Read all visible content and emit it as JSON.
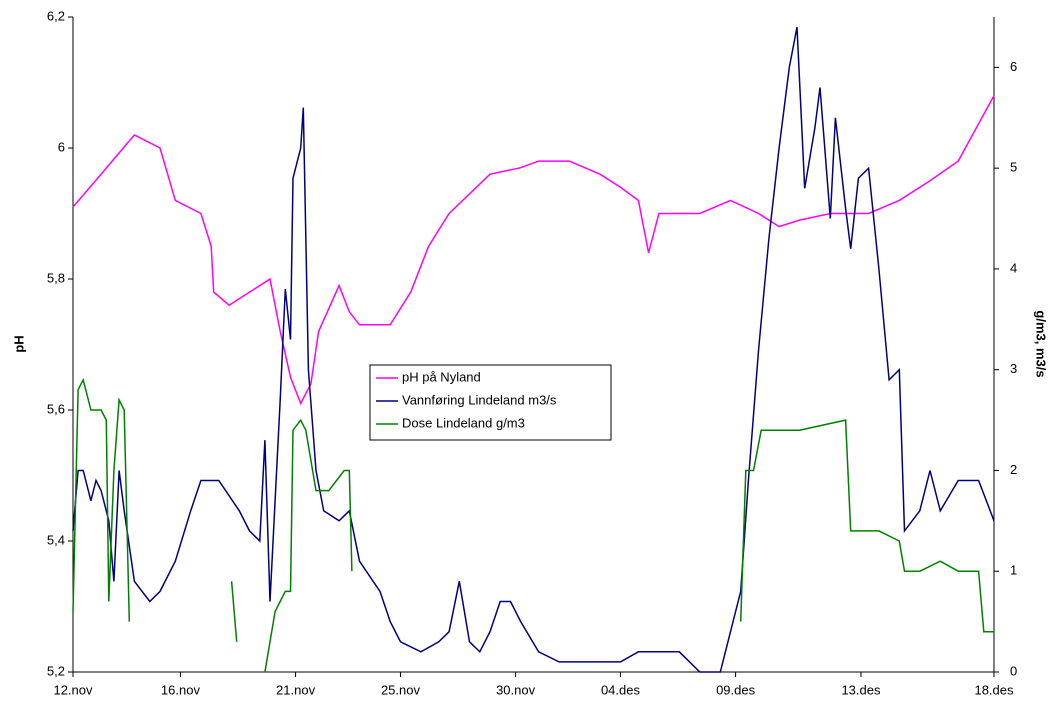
{
  "chart_data": {
    "type": "line",
    "y_label": "pH",
    "y2_label": "g/m3, m3/s",
    "xlim": [
      0,
      36
    ],
    "xticks": [
      {
        "value": 0,
        "label": "12.nov"
      },
      {
        "value": 4.2,
        "label": "16.nov"
      },
      {
        "value": 8.7,
        "label": "21.nov"
      },
      {
        "value": 12.8,
        "label": "25.nov"
      },
      {
        "value": 17.3,
        "label": "30.nov"
      },
      {
        "value": 21.4,
        "label": "04.des"
      },
      {
        "value": 25.9,
        "label": "09.des"
      },
      {
        "value": 30.8,
        "label": "13.des"
      },
      {
        "value": 36,
        "label": "18.des"
      }
    ],
    "ylim": [
      5.2,
      6.2
    ],
    "yticks": [
      {
        "value": 5.2,
        "label": "5,2"
      },
      {
        "value": 5.4,
        "label": "5,4"
      },
      {
        "value": 5.6,
        "label": "5,6"
      },
      {
        "value": 5.8,
        "label": "5,8"
      },
      6,
      {
        "value": 6.2,
        "label": "6,2"
      }
    ],
    "y2lim": [
      0,
      6.5
    ],
    "y2ticks": [
      0,
      1,
      2,
      3,
      4,
      5,
      6
    ],
    "series": [
      {
        "name": "pH på Nyland",
        "color": "#ff00ff",
        "x": [
          0,
          1.1,
          2.4,
          3.4,
          4.0,
          5.0,
          5.4,
          5.5,
          6.1,
          7.3,
          7.7,
          8.1,
          8.5,
          8.9,
          9.3,
          9.6,
          10.4,
          10.8,
          11.2,
          12.4,
          13.2,
          13.9,
          14.7,
          15.5,
          16.3,
          17.5,
          18.2,
          19.4,
          20.6,
          21.4,
          22.1,
          22.5,
          22.9,
          24.5,
          25.7,
          26.8,
          27.6,
          28.4,
          29.6,
          31.1,
          32.3,
          33.5,
          34.6,
          36.0
        ],
        "values": [
          5.91,
          5.96,
          6.02,
          6.0,
          5.92,
          5.9,
          5.85,
          5.78,
          5.76,
          5.79,
          5.8,
          5.72,
          5.65,
          5.61,
          5.64,
          5.72,
          5.79,
          5.75,
          5.73,
          5.73,
          5.78,
          5.85,
          5.9,
          5.93,
          5.96,
          5.97,
          5.98,
          5.98,
          5.96,
          5.94,
          5.92,
          5.84,
          5.9,
          5.9,
          5.92,
          5.9,
          5.88,
          5.89,
          5.9,
          5.9,
          5.92,
          5.95,
          5.98,
          6.08
        ]
      },
      {
        "name": "Vannføring Lindeland m3/s",
        "color": "#000080",
        "axis": "y2",
        "x": [
          0,
          0.2,
          0.4,
          0.7,
          0.9,
          1.1,
          1.4,
          1.6,
          1.8,
          2.0,
          2.4,
          3.0,
          3.4,
          4.0,
          4.6,
          5.0,
          5.7,
          6.5,
          6.9,
          7.3,
          7.5,
          7.7,
          8.1,
          8.3,
          8.5,
          8.6,
          8.9,
          9.0,
          9.2,
          9.5,
          9.8,
          10.4,
          10.8,
          11.2,
          12.0,
          12.4,
          12.8,
          13.6,
          14.3,
          14.7,
          15.1,
          15.5,
          15.9,
          16.3,
          16.7,
          17.1,
          17.5,
          18.2,
          19.0,
          20.6,
          21.4,
          22.1,
          22.9,
          23.7,
          24.5,
          25.3,
          26.1,
          26.4,
          26.8,
          27.2,
          27.6,
          28.0,
          28.3,
          28.6,
          29.0,
          29.2,
          29.6,
          29.8,
          30.2,
          30.4,
          30.7,
          31.1,
          31.5,
          31.9,
          32.3,
          32.5,
          33.1,
          33.5,
          33.9,
          34.6,
          35.4,
          36.0
        ],
        "values": [
          1.4,
          2.0,
          2.0,
          1.7,
          1.9,
          1.8,
          1.5,
          0.9,
          2.0,
          1.6,
          0.9,
          0.7,
          0.8,
          1.1,
          1.6,
          1.9,
          1.9,
          1.6,
          1.4,
          1.3,
          2.3,
          0.7,
          2.7,
          3.8,
          3.3,
          4.9,
          5.2,
          5.6,
          3.0,
          2.0,
          1.6,
          1.5,
          1.6,
          1.1,
          0.8,
          0.5,
          0.3,
          0.2,
          0.3,
          0.4,
          0.9,
          0.3,
          0.2,
          0.4,
          0.7,
          0.7,
          0.5,
          0.2,
          0.1,
          0.1,
          0.1,
          0.2,
          0.2,
          0.2,
          0.0,
          0.0,
          0.8,
          1.9,
          3.2,
          4.3,
          5.2,
          6.0,
          6.4,
          4.8,
          5.4,
          5.8,
          4.5,
          5.5,
          4.6,
          4.2,
          4.9,
          5.0,
          4.0,
          2.9,
          3.0,
          1.4,
          1.6,
          2.0,
          1.6,
          1.9,
          1.9,
          1.5
        ]
      },
      {
        "name": "Dose Lindeland g/m3",
        "color": "#008000",
        "axis": "y2",
        "x": [
          0,
          0.2,
          0.4,
          0.7,
          1.1,
          1.3,
          1.4,
          1.6,
          1.8,
          2.0,
          2.2,
          2.3,
          6.2,
          6.4,
          6.8,
          7.5,
          7.9,
          8.3,
          8.5,
          8.6,
          8.9,
          9.1,
          9.5,
          10.0,
          10.6,
          10.8,
          10.9,
          15,
          26.1,
          26.3,
          26.6,
          26.9,
          28.4,
          30.2,
          30.4,
          31.5,
          32.3,
          32.5,
          33.1,
          33.9,
          34.6,
          35.4,
          35.6,
          36.0
        ],
        "values": [
          0.6,
          2.8,
          2.9,
          2.6,
          2.6,
          2.5,
          0.7,
          2.0,
          2.7,
          2.6,
          0.5,
          null,
          0.9,
          0.3,
          null,
          0,
          0.6,
          0.8,
          0.8,
          2.4,
          2.5,
          2.4,
          1.8,
          1.8,
          2.0,
          2.0,
          1.0,
          null,
          0.5,
          2.0,
          2.0,
          2.4,
          2.4,
          2.5,
          1.4,
          1.4,
          1.3,
          1.0,
          1.0,
          1.1,
          1.0,
          1.0,
          0.4,
          0.4
        ]
      }
    ]
  }
}
